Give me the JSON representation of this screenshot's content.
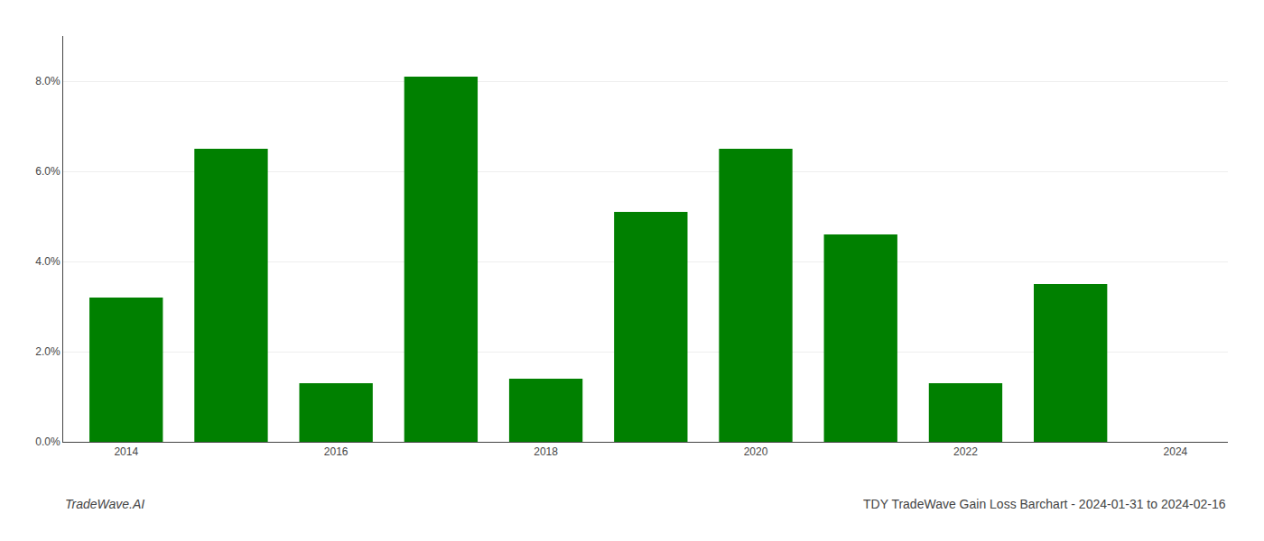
{
  "chart_data": {
    "type": "bar",
    "title": "TDY TradeWave Gain Loss Barchart - 2024-01-31 to 2024-02-16",
    "annotations": [
      "TradeWave.AI"
    ],
    "x": [
      2014,
      2015,
      2016,
      2017,
      2018,
      2019,
      2020,
      2021,
      2022,
      2023
    ],
    "values": [
      0.032,
      0.065,
      0.013,
      0.081,
      0.014,
      0.051,
      0.065,
      0.046,
      0.013,
      0.035
    ],
    "color": "#008000",
    "xlim": [
      2013.4,
      2024.5
    ],
    "xticks": [
      2014,
      2016,
      2018,
      2020,
      2022,
      2024
    ],
    "ylim": [
      0,
      0.09
    ],
    "yticks": [
      {
        "value": 0.0,
        "label": "0.0%"
      },
      {
        "value": 0.02,
        "label": "2.0%"
      },
      {
        "value": 0.04,
        "label": "4.0%"
      },
      {
        "value": 0.06,
        "label": "6.0%"
      },
      {
        "value": 0.08,
        "label": "8.0%"
      }
    ],
    "grid": "y"
  }
}
